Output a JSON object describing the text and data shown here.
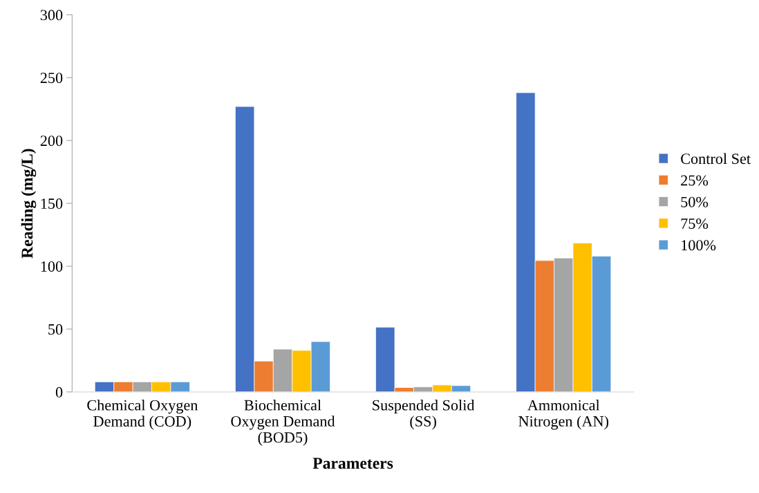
{
  "chart_data": {
    "type": "bar",
    "xlabel": "Parameters",
    "ylabel": "Reading (mg/L)",
    "categories": [
      "Chemical Oxygen\nDemand (COD)",
      "Biochemical\nOxygen Demand\n(BOD5)",
      "Suspended Solid\n(SS)",
      "Ammonical\nNitrogen (AN)"
    ],
    "series": [
      {
        "name": "Control Set",
        "color": "#4472c4",
        "values": [
          8,
          227,
          51.5,
          238
        ]
      },
      {
        "name": "25%",
        "color": "#ed7d31",
        "values": [
          8,
          24.5,
          3.5,
          104.5
        ]
      },
      {
        "name": "50%",
        "color": "#a5a5a5",
        "values": [
          8,
          34,
          4,
          106.5
        ]
      },
      {
        "name": "75%",
        "color": "#ffc000",
        "values": [
          8,
          33,
          5.5,
          118.5
        ]
      },
      {
        "name": "100%",
        "color": "#5b9bd5",
        "values": [
          8,
          40,
          5,
          108
        ]
      }
    ],
    "ylim": [
      0,
      300
    ],
    "yticks": [
      0,
      50,
      100,
      150,
      200,
      250,
      300
    ],
    "grid": false,
    "legend": "right"
  }
}
